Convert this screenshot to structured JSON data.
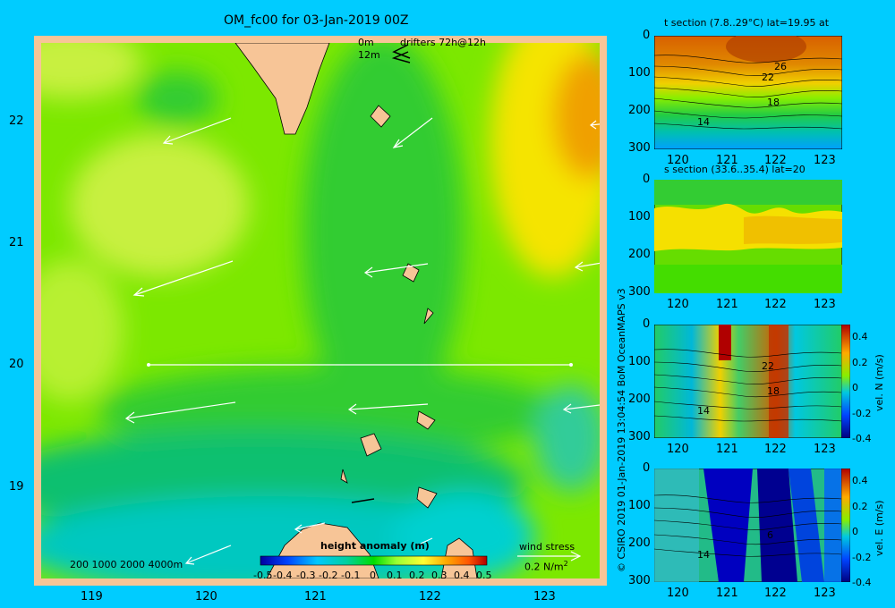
{
  "main_map": {
    "title": "OM_fc00 for 03-Jan-2019 00Z",
    "drifters_label": "drifters 72h@12h",
    "depth_label_top": "0m",
    "depth_label_bottom": "12m",
    "lon_ticks": [
      "119",
      "120",
      "121",
      "122",
      "123"
    ],
    "lat_ticks": [
      "22",
      "21",
      "20",
      "19"
    ],
    "bathy_label": "200  1000  2000  4000m",
    "wind_label": "wind stress",
    "wind_scale": "0.2 N/m",
    "wind_scale_exp": "2",
    "colorbar_title": "height anomaly (m)",
    "colorbar_ticks": [
      "-0.5",
      "-0.4",
      "-0.3",
      "-0.2",
      "-0.1",
      "0",
      "0.1",
      "0.2",
      "0.3",
      "0.4",
      "0.5"
    ]
  },
  "side_text": {
    "copyright": "© CSIRO 2019   01-Jan-2019 13:04:54 BoM OceanMAPS v3"
  },
  "panels": [
    {
      "title": "t section (7.8..29°C) lat=19.95 at",
      "contour_labels": [
        "26",
        "22",
        "18",
        "14"
      ],
      "cbar_label": ""
    },
    {
      "title": "s section (33.6..35.4) lat=20",
      "contour_labels": [],
      "cbar_label": ""
    },
    {
      "title": "",
      "contour_labels": [
        "22",
        "18",
        "14"
      ],
      "cbar_label": "vel. N (m/s)"
    },
    {
      "title": "",
      "contour_labels": [
        "6",
        "14"
      ],
      "cbar_label": "vel. E (m/s)"
    }
  ],
  "panel_axes": {
    "x_ticks": [
      "120",
      "121",
      "122",
      "123"
    ],
    "y_ticks": [
      "0",
      "100",
      "200",
      "300"
    ],
    "cbar_ticks": [
      "0.4",
      "0.2",
      "0",
      "-0.2",
      "-0.4"
    ]
  },
  "colors": {
    "background": "#00ccff",
    "land": "#f7c597",
    "drifter": "#ff33ff"
  },
  "chart_data": [
    {
      "type": "heatmap",
      "title": "OM_fc00 for 03-Jan-2019 00Z",
      "variable": "height anomaly (m)",
      "x_range": [
        118.5,
        123.5
      ],
      "y_range": [
        18.3,
        22.7
      ],
      "color_range": [
        -0.5,
        0.5
      ],
      "section_line": {
        "lat": 20,
        "lon_from": 119.5,
        "lon_to": 123.05
      }
    },
    {
      "type": "heatmap",
      "title": "t section (7.8..29°C) lat=19.95 at",
      "x_range": [
        119.5,
        123.2
      ],
      "y_range": [
        300,
        0
      ],
      "contour_levels": [
        26,
        22,
        18,
        14
      ]
    },
    {
      "type": "heatmap",
      "title": "s section (33.6..35.4) lat=20",
      "x_range": [
        119.5,
        123.2
      ],
      "y_range": [
        300,
        0
      ]
    },
    {
      "type": "heatmap",
      "ylabel": "vel. N (m/s)",
      "x_range": [
        119.5,
        123.2
      ],
      "y_range": [
        300,
        0
      ],
      "color_range": [
        -0.4,
        0.4
      ],
      "contour_levels": [
        22,
        18,
        14
      ]
    },
    {
      "type": "heatmap",
      "ylabel": "vel. E (m/s)",
      "x_range": [
        119.5,
        123.2
      ],
      "y_range": [
        300,
        0
      ],
      "color_range": [
        -0.4,
        0.4
      ],
      "contour_levels": [
        6,
        14
      ]
    }
  ]
}
